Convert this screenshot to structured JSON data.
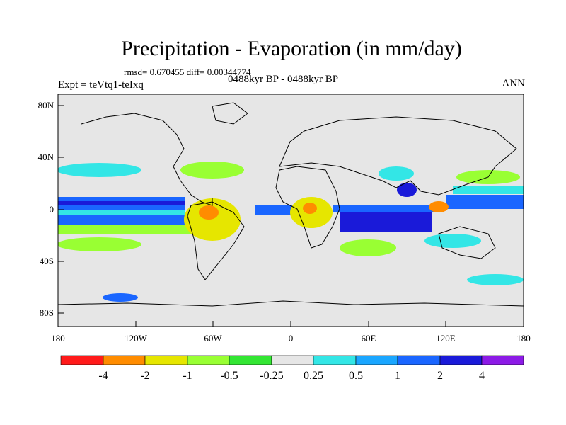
{
  "figure": {
    "title": "Precipitation - Evaporation (in mm/day)",
    "stats": "rmsd= 0.670455 diff= 0.00344774",
    "experiment": "Expt = teVtq1-teIxq",
    "period": "0488kyr BP - 0488kyr BP",
    "season": "ANN"
  },
  "axes": {
    "lat_ticks": [
      "80N",
      "40N",
      "0",
      "40S",
      "80S"
    ],
    "lon_ticks": [
      "180",
      "120W",
      "60W",
      "0",
      "60E",
      "120E",
      "180"
    ]
  },
  "colorbar": {
    "colors": [
      "#ff1a1a",
      "#ff8c00",
      "#e6e600",
      "#99ff33",
      "#33e633",
      "#e6e6e6",
      "#33e6e6",
      "#1aa6ff",
      "#1a66ff",
      "#1a1ad9",
      "#8c1ae6"
    ],
    "labels": [
      "-4",
      "-2",
      "-1",
      "-0.5",
      "-0.25",
      "0.25",
      "0.5",
      "1",
      "2",
      "4"
    ]
  }
}
